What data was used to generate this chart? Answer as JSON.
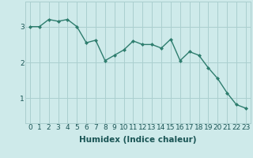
{
  "x": [
    0,
    1,
    2,
    3,
    4,
    5,
    6,
    7,
    8,
    9,
    10,
    11,
    12,
    13,
    14,
    15,
    16,
    17,
    18,
    19,
    20,
    21,
    22,
    23
  ],
  "y": [
    3.0,
    3.0,
    3.2,
    3.15,
    3.2,
    3.0,
    2.55,
    2.62,
    2.05,
    2.2,
    2.35,
    2.6,
    2.5,
    2.5,
    2.4,
    2.65,
    2.05,
    2.3,
    2.2,
    1.85,
    1.55,
    1.15,
    0.82,
    0.72
  ],
  "line_color": "#2e7d6e",
  "marker": "D",
  "marker_size": 2.0,
  "bg_color": "#ceeaea",
  "grid_color": "#aacfcf",
  "xlabel": "Humidex (Indice chaleur)",
  "xlabel_fontsize": 7.5,
  "ylabel_ticks": [
    1,
    2,
    3
  ],
  "xlim": [
    -0.5,
    23.5
  ],
  "ylim": [
    0.3,
    3.7
  ],
  "line_width": 1.0,
  "tick_fontsize": 6.5
}
